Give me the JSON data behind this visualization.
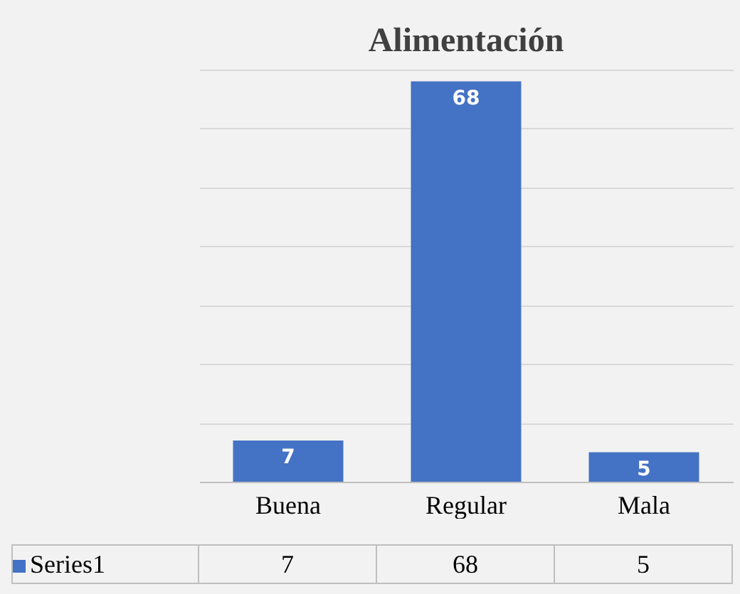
{
  "chart_data": {
    "type": "bar",
    "title": "Alimentación",
    "categories": [
      "Buena",
      "Regular",
      "Mala"
    ],
    "series": [
      {
        "name": "Series1",
        "color": "#4472c4",
        "values": [
          7,
          68,
          5
        ],
        "value_labels": [
          "7",
          "68",
          "5"
        ]
      }
    ],
    "grid": "y",
    "data_labels": true,
    "legend": "bottom left"
  }
}
